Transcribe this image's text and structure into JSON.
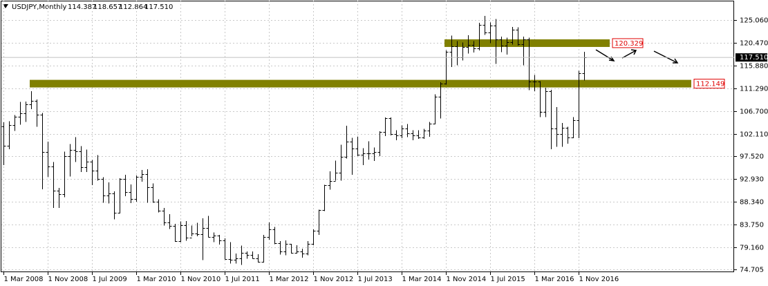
{
  "chart_data": {
    "type": "ohlc",
    "title": "USDJPY,Monthly",
    "header_values": [
      "114.387",
      "118.657",
      "112.864",
      "117.510"
    ],
    "categories": [
      "1 Mar 2008",
      null,
      null,
      null,
      null,
      null,
      null,
      null,
      "1 Nov 2008",
      null,
      null,
      null,
      null,
      null,
      null,
      null,
      "1 Jul 2009",
      null,
      null,
      null,
      null,
      null,
      null,
      null,
      "1 Mar 2010",
      null,
      null,
      null,
      null,
      null,
      null,
      null,
      "1 Nov 2010",
      null,
      null,
      null,
      null,
      null,
      null,
      null,
      "1 Jul 2011",
      null,
      null,
      null,
      null,
      null,
      null,
      null,
      "1 Mar 2012",
      null,
      null,
      null,
      null,
      null,
      null,
      null,
      "1 Nov 2012",
      null,
      null,
      null,
      null,
      null,
      null,
      null,
      "1 Jul 2013",
      null,
      null,
      null,
      null,
      null,
      null,
      null,
      "1 Mar 2014",
      null,
      null,
      null,
      null,
      null,
      null,
      null,
      "1 Nov 2014",
      null,
      null,
      null,
      null,
      null,
      null,
      null,
      "1 Jul 2015",
      null,
      null,
      null,
      null,
      null,
      null,
      null,
      "1 Mar 2016",
      null,
      null,
      null,
      null,
      null,
      null,
      null,
      "1 Nov 2016",
      null
    ],
    "open": [
      103.6,
      99.7,
      103.9,
      105.5,
      106.2,
      108.0,
      108.8,
      106.0,
      98.4,
      95.5,
      90.6,
      89.9,
      97.6,
      98.9,
      98.6,
      95.3,
      96.4,
      94.7,
      93.0,
      89.7,
      90.0,
      86.2,
      93.0,
      90.3,
      89.0,
      93.4,
      94.0,
      91.3,
      88.4,
      86.5,
      84.2,
      83.5,
      80.4,
      83.6,
      81.1,
      82.0,
      81.8,
      83.1,
      81.2,
      81.5,
      80.5,
      76.8,
      76.6,
      77.0,
      78.0,
      77.6,
      76.9,
      76.2,
      81.2,
      82.8,
      80.0,
      78.3,
      79.8,
      78.1,
      78.3,
      77.9,
      79.8,
      82.5,
      86.7,
      91.7,
      92.6,
      94.2,
      97.4,
      100.5,
      99.1,
      97.9,
      98.1,
      98.2,
      98.4,
      102.4,
      105.3,
      102.0,
      101.8,
      103.2,
      102.2,
      101.8,
      101.3,
      102.8,
      104.1,
      109.6,
      112.3,
      118.6,
      119.8,
      117.5,
      119.6,
      120.1,
      119.4,
      124.1,
      122.5,
      123.9,
      121.2,
      119.9,
      120.6,
      123.1,
      120.2,
      121.1,
      112.7,
      112.6,
      106.5,
      110.7,
      103.2,
      102.1,
      103.3,
      101.3,
      104.8,
      114.387
    ],
    "high": [
      104.4,
      104.6,
      105.9,
      108.5,
      108.6,
      110.7,
      109.0,
      106.3,
      100.5,
      96.4,
      91.2,
      98.5,
      100.0,
      101.4,
      99.6,
      98.9,
      96.8,
      97.8,
      93.3,
      92.3,
      90.5,
      93.1,
      93.8,
      91.9,
      93.7,
      94.8,
      94.9,
      92.1,
      88.9,
      87.1,
      85.9,
      83.9,
      84.4,
      84.5,
      83.6,
      84.1,
      85.0,
      85.5,
      82.2,
      81.7,
      81.0,
      80.2,
      77.9,
      79.5,
      78.3,
      78.3,
      77.8,
      81.7,
      84.2,
      83.3,
      80.4,
      80.6,
      79.9,
      79.6,
      78.9,
      80.4,
      82.8,
      86.8,
      91.8,
      94.5,
      96.7,
      99.9,
      103.7,
      101.3,
      101.5,
      99.2,
      100.6,
      99.3,
      102.6,
      105.4,
      105.4,
      102.8,
      103.8,
      104.1,
      102.8,
      102.8,
      103.1,
      104.5,
      110.1,
      112.5,
      118.9,
      121.9,
      120.8,
      120.5,
      122.0,
      120.8,
      124.5,
      125.9,
      124.6,
      125.3,
      121.7,
      121.5,
      123.7,
      123.6,
      121.7,
      121.5,
      114.0,
      112.7,
      111.4,
      111.0,
      107.5,
      104.3,
      103.5,
      105.5,
      114.8,
      118.657
    ],
    "low": [
      95.8,
      99.0,
      102.7,
      103.9,
      104.5,
      107.1,
      103.5,
      90.9,
      93.4,
      87.1,
      87.1,
      89.3,
      93.5,
      96.4,
      94.4,
      94.4,
      91.7,
      92.6,
      88.2,
      88.0,
      84.8,
      86.0,
      89.5,
      88.1,
      88.4,
      92.4,
      88.2,
      88.2,
      86.2,
      83.6,
      82.9,
      80.3,
      80.2,
      80.5,
      81.4,
      81.4,
      76.6,
      81.2,
      80.2,
      79.7,
      76.7,
      75.9,
      75.9,
      75.6,
      76.9,
      76.9,
      76.1,
      76.1,
      80.7,
      79.8,
      77.7,
      77.6,
      77.9,
      77.9,
      77.1,
      77.6,
      79.6,
      81.7,
      86.5,
      90.8,
      92.6,
      92.6,
      97.1,
      93.8,
      97.6,
      95.8,
      96.9,
      96.6,
      97.6,
      101.6,
      101.8,
      100.8,
      101.2,
      101.4,
      100.8,
      101.1,
      101.1,
      101.5,
      104.0,
      105.2,
      112.0,
      115.6,
      115.9,
      116.9,
      118.3,
      118.5,
      118.9,
      122.1,
      120.4,
      116.2,
      118.6,
      118.1,
      120.1,
      119.9,
      115.9,
      110.9,
      110.7,
      105.5,
      105.5,
      99.0,
      99.5,
      99.5,
      100.1,
      101.2,
      101.2,
      112.864
    ],
    "close": [
      99.7,
      103.9,
      105.5,
      106.2,
      108.0,
      108.8,
      106.0,
      98.4,
      95.5,
      90.6,
      89.9,
      97.6,
      98.9,
      98.6,
      95.3,
      96.4,
      94.7,
      93.0,
      89.7,
      90.0,
      86.2,
      93.0,
      90.3,
      89.0,
      93.4,
      94.0,
      91.3,
      88.4,
      86.5,
      84.2,
      83.5,
      80.4,
      83.6,
      81.1,
      82.0,
      81.8,
      83.1,
      81.2,
      81.5,
      80.5,
      76.8,
      76.6,
      77.0,
      78.0,
      77.6,
      76.9,
      76.2,
      81.2,
      82.8,
      80.0,
      78.3,
      79.8,
      78.1,
      78.3,
      77.9,
      79.8,
      82.5,
      86.7,
      91.7,
      92.6,
      94.2,
      97.4,
      100.5,
      99.1,
      97.9,
      98.1,
      98.2,
      98.4,
      102.4,
      105.3,
      102.0,
      101.8,
      103.2,
      102.2,
      101.8,
      101.3,
      102.8,
      104.1,
      109.6,
      112.3,
      118.6,
      119.8,
      117.5,
      119.6,
      120.1,
      119.4,
      124.1,
      122.5,
      123.9,
      121.2,
      119.9,
      120.6,
      123.1,
      120.2,
      121.1,
      112.7,
      112.6,
      106.5,
      110.7,
      103.2,
      102.1,
      103.3,
      101.3,
      104.8,
      114.387,
      117.51
    ],
    "color": "#000000",
    "ylim": [
      74.15,
      128.97
    ],
    "yticks": [
      {
        "value": 125.06,
        "label": "125.060"
      },
      {
        "value": 120.47,
        "label": "120.470"
      },
      {
        "value": 115.88,
        "label": "115.880"
      },
      {
        "value": 111.29,
        "label": "111.290"
      },
      {
        "value": 106.7,
        "label": "106.700"
      },
      {
        "value": 102.11,
        "label": "102.110"
      },
      {
        "value": 97.52,
        "label": "97.520"
      },
      {
        "value": 92.93,
        "label": "92.930"
      },
      {
        "value": 88.34,
        "label": "88.340"
      },
      {
        "value": 83.75,
        "label": "83.750"
      },
      {
        "value": 79.16,
        "label": "79.160"
      },
      {
        "value": 74.705,
        "label": "74.705"
      }
    ],
    "current_price": {
      "value": 117.51,
      "label": "117.510"
    },
    "levels": [
      {
        "value": 120.329
      },
      {
        "value": 112.149
      }
    ],
    "level_color": "#808000",
    "grid": true
  }
}
